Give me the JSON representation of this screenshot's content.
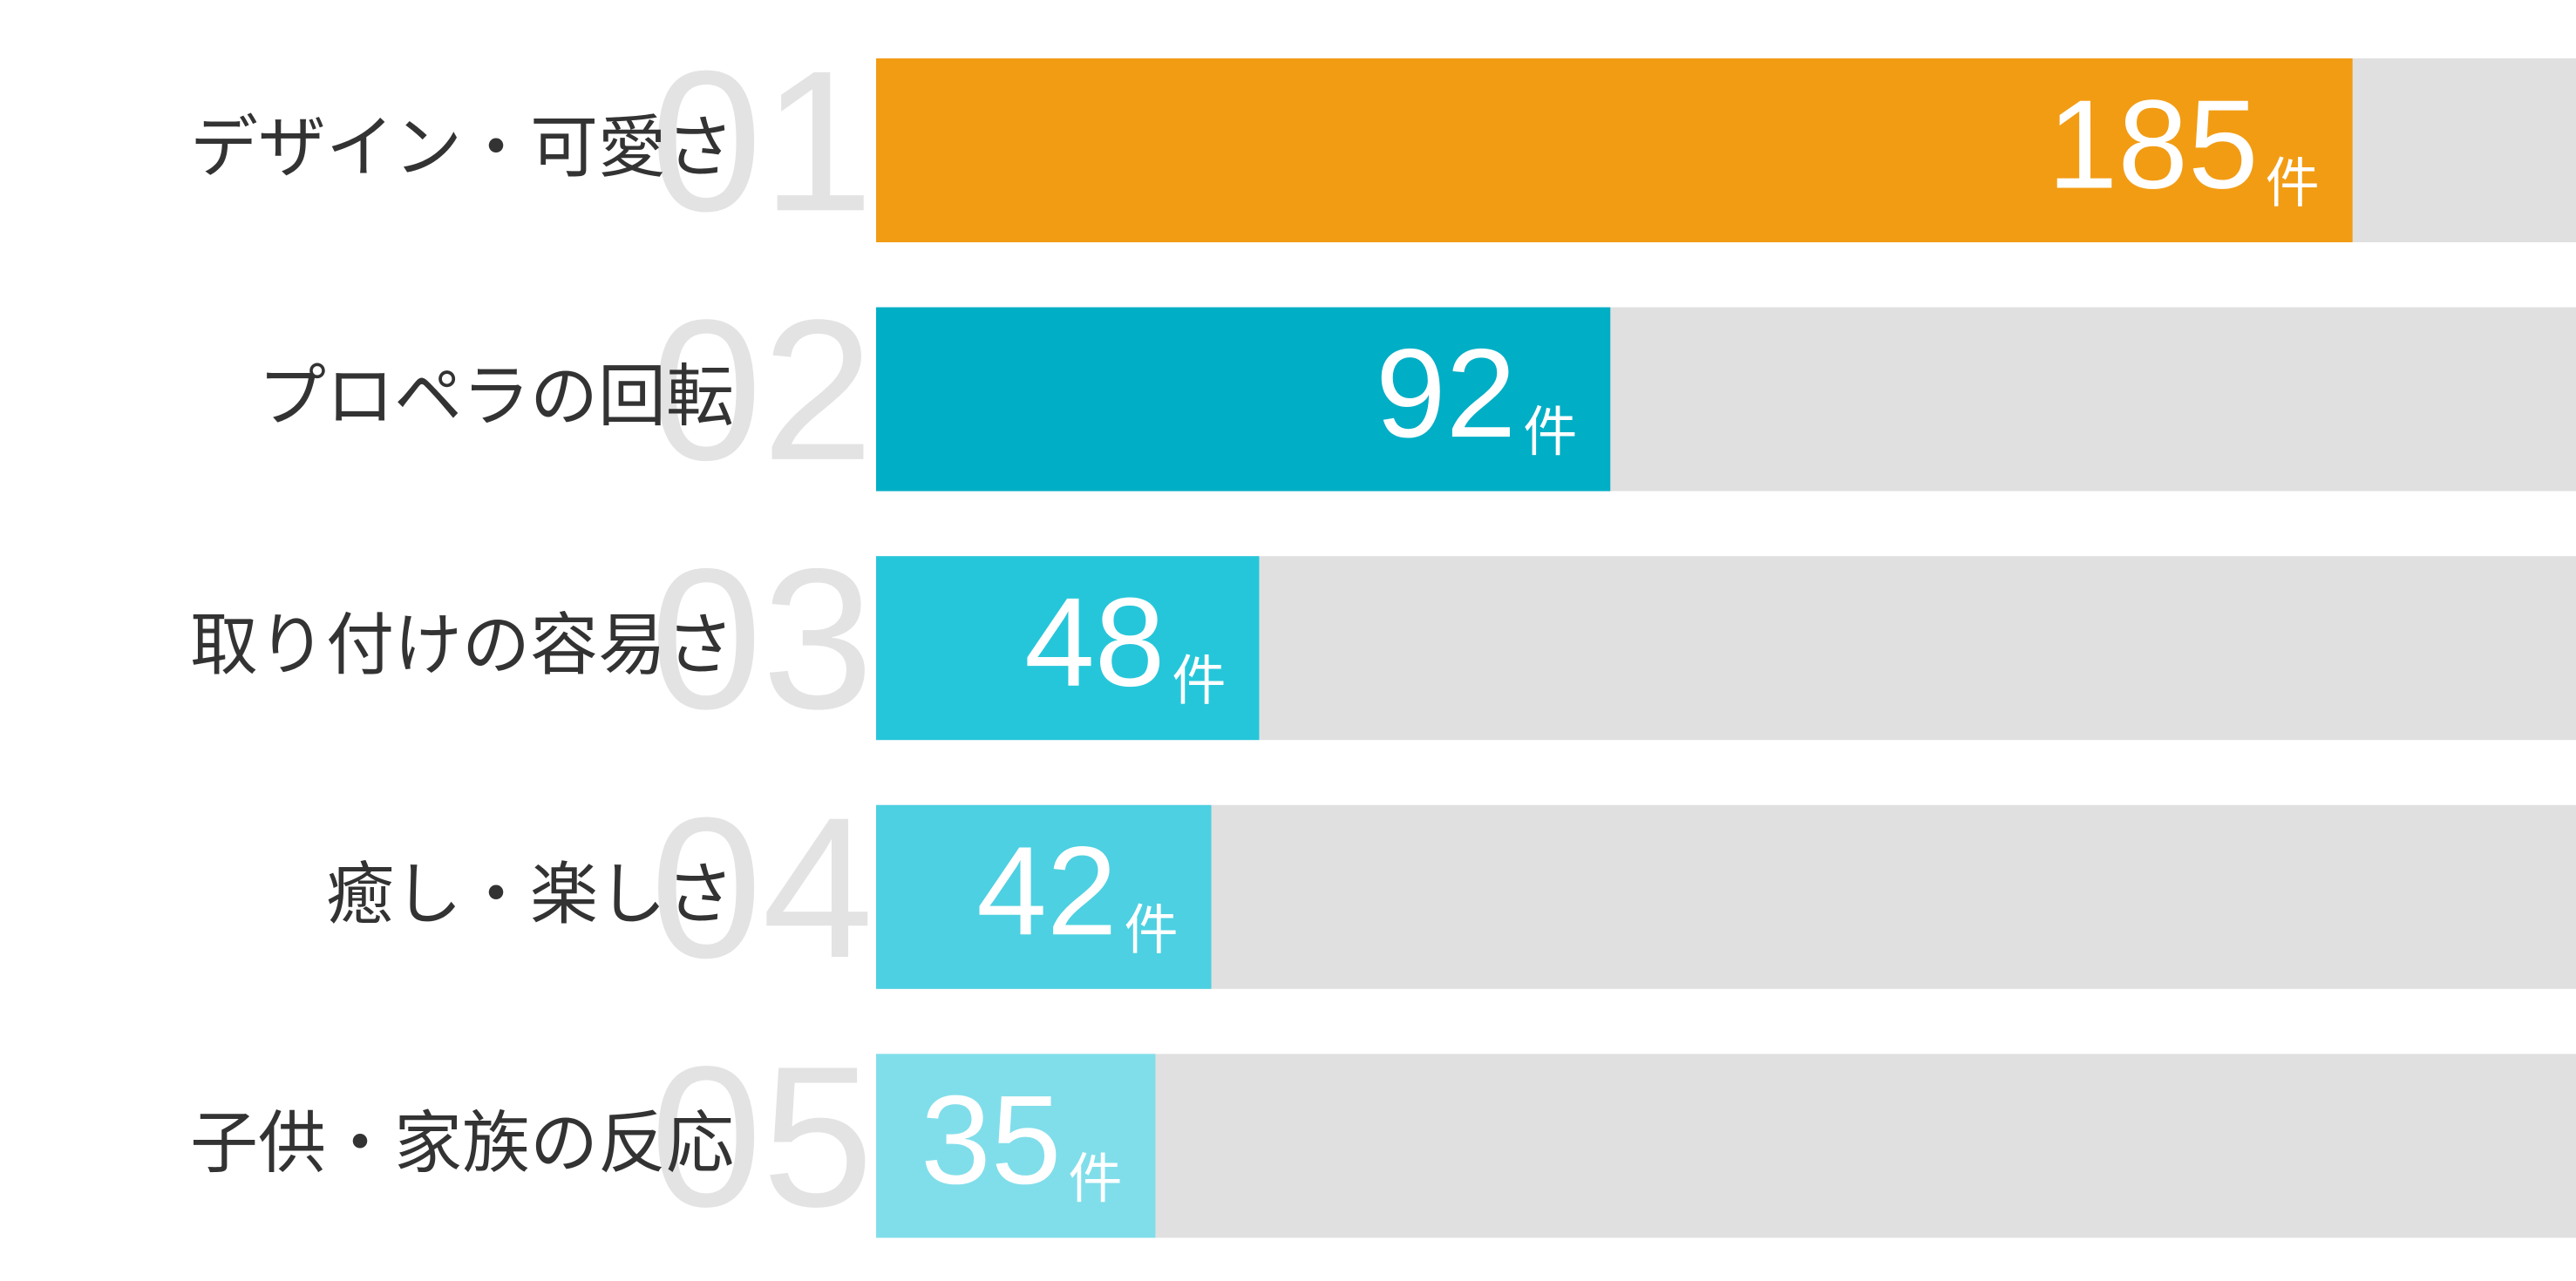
{
  "chart_data": {
    "type": "bar",
    "orientation": "horizontal",
    "categories": [
      "デザイン・可愛さ",
      "プロペラの回転",
      "取り付けの容易さ",
      "癒し・楽しさ",
      "子供・家族の反応"
    ],
    "ranks": [
      "01",
      "02",
      "03",
      "04",
      "05"
    ],
    "values": [
      185,
      92,
      48,
      42,
      35
    ],
    "colors": [
      "#f29c14",
      "#00aec5",
      "#26c6da",
      "#4dd0e1",
      "#80deea"
    ],
    "unit": "件",
    "xlim": [
      0,
      213
    ]
  }
}
